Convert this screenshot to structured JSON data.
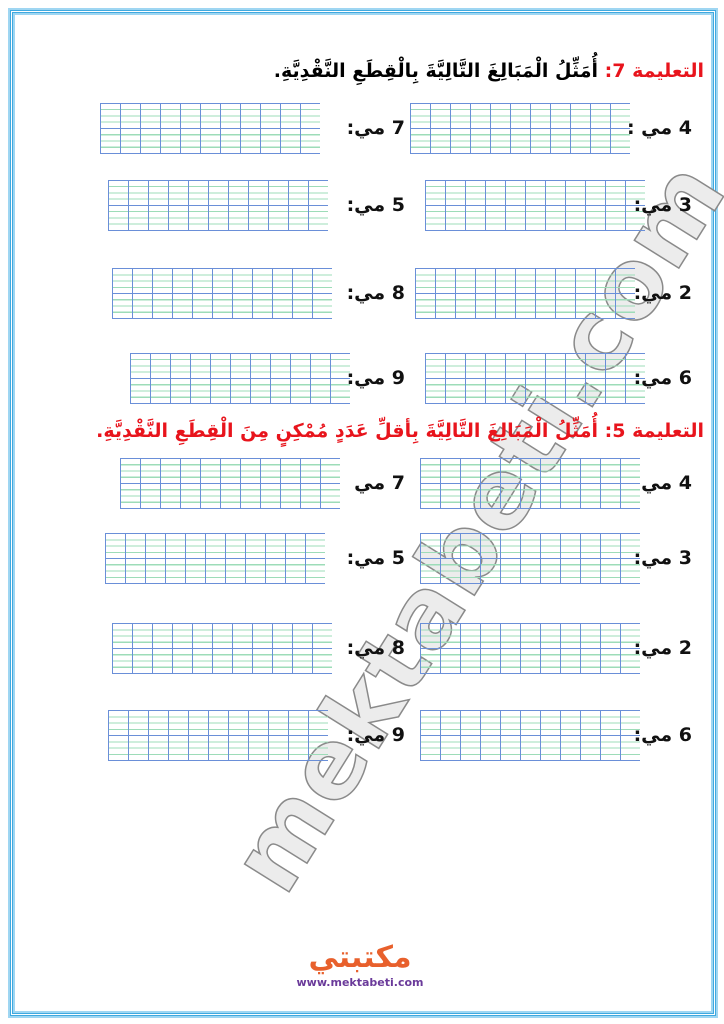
{
  "sections": [
    {
      "label": "التعليمة 7:",
      "text": "أُمَثِّلُ الْمَبَالِغَ التَّالِيَّةَ بِالْقِطَعِ النَّقْدِيَّةِ.",
      "right": [
        "4 مي :",
        "3 مي:",
        "2 مي:",
        "6 مي:"
      ],
      "left": [
        "7 مي:",
        "5 مي:",
        "8 مي:",
        "9 مي:"
      ]
    },
    {
      "label": "التعليمة 5:",
      "text": "أُمَثِّلُ الْمَبَالِغَ التَّالِيَّةَ بِأقلِّ عَدَدٍ مُمْكِنٍ مِنَ الْقِطَعِ النَّقْدِيَّةِ.",
      "right": [
        "4 مي",
        "3 مي:",
        "2 مي:",
        "6 مي:"
      ],
      "left": [
        "7 مي",
        "5 مي:",
        "8 مي:",
        "9 مي:"
      ]
    }
  ],
  "watermark": "mektabeti.com",
  "logo": {
    "arabic": "مكتبتي",
    "url": "www.mektabeti.com"
  },
  "colors": {
    "border": "#3fa9e0",
    "accent": "#e8141c"
  }
}
